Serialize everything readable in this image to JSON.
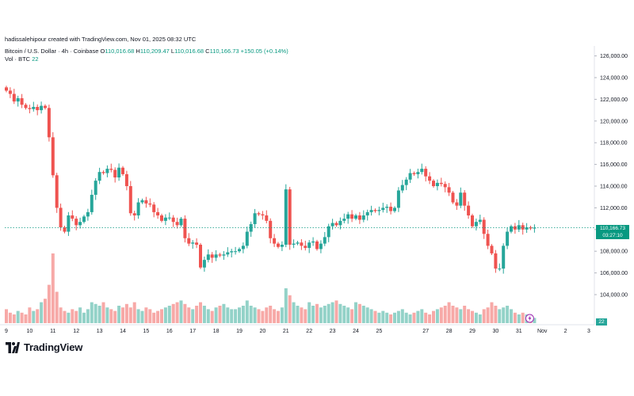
{
  "header": {
    "credit": "hadissalehipour created with TradingView.com, Nov 01, 2025 08:32 UTC",
    "symbol": "Bitcoin / U.S. Dollar · 4h · Coinbase",
    "o_label": "O",
    "o_value": "110,016.68",
    "h_label": "H",
    "h_value": "110,209.47",
    "l_label": "L",
    "l_value": "110,016.68",
    "c_label": "C",
    "c_value": "110,166.73",
    "change": "+150.05 (+0.14%)",
    "vol_label": "Vol · BTC",
    "vol_value": "22"
  },
  "price_label": {
    "value": "110,166.73",
    "countdown": "03:27:10"
  },
  "volume_label": "22",
  "brand": {
    "name": "TradingView"
  },
  "colors": {
    "up": "#26a69a",
    "down": "#ef5350",
    "up_vol": "#93d2c8",
    "down_vol": "#f7a9a7",
    "price_line": "#089981"
  },
  "chart_data": {
    "type": "candlestick",
    "title": "Bitcoin / U.S. Dollar · 4h · Coinbase",
    "y_axis": {
      "ticks": [
        104000,
        106000,
        108000,
        110000,
        112000,
        114000,
        116000,
        118000,
        120000,
        122000,
        124000,
        126000
      ],
      "tick_labels": [
        "104,000.00",
        "106,000.00",
        "108,000.00",
        "110,000.00",
        "112,000.00",
        "114,000.00",
        "116,000.00",
        "118,000.00",
        "120,000.00",
        "122,000.00",
        "124,000.00",
        "126,000.00"
      ],
      "range": [
        102000,
        127000
      ]
    },
    "x_axis": {
      "tick_labels": [
        "9",
        "10",
        "11",
        "12",
        "13",
        "14",
        "15",
        "16",
        "17",
        "18",
        "19",
        "20",
        "21",
        "22",
        "23",
        "24",
        "25",
        "",
        "27",
        "28",
        "29",
        "30",
        "31",
        "Nov",
        "2",
        "3"
      ],
      "tick_positions": [
        0,
        6,
        12,
        18,
        24,
        30,
        36,
        42,
        48,
        54,
        60,
        66,
        72,
        78,
        84,
        90,
        96,
        102,
        108,
        114,
        120,
        126,
        132,
        138,
        144,
        150
      ]
    },
    "current_price": 110166.73,
    "closes": [
      122800,
      122500,
      121800,
      122100,
      121500,
      121200,
      121100,
      121300,
      121000,
      121400,
      121200,
      118500,
      115000,
      112000,
      110200,
      109800,
      111300,
      111000,
      110400,
      110700,
      111200,
      111600,
      113200,
      114500,
      115300,
      115200,
      115600,
      115500,
      114800,
      115700,
      115100,
      114000,
      111500,
      111300,
      112500,
      112700,
      112400,
      112300,
      111600,
      111300,
      110800,
      111100,
      111100,
      110700,
      110400,
      111000,
      109200,
      108700,
      108800,
      108600,
      106500,
      107200,
      107700,
      107400,
      107700,
      107600,
      107700,
      107900,
      108000,
      108000,
      108200,
      108500,
      109800,
      110500,
      111500,
      111400,
      111300,
      110800,
      109200,
      108700,
      108400,
      108600,
      113700,
      108600,
      108700,
      108800,
      108500,
      108300,
      108800,
      108900,
      108200,
      108700,
      109300,
      110300,
      110600,
      110400,
      110800,
      111000,
      111400,
      111000,
      111300,
      110900,
      111300,
      111600,
      111800,
      111700,
      111800,
      112000,
      112100,
      111700,
      112000,
      113600,
      114100,
      114600,
      115200,
      115100,
      115300,
      115600,
      114900,
      114500,
      114000,
      114300,
      114200,
      113900,
      113400,
      112500,
      112200,
      113400,
      112200,
      111300,
      110300,
      110700,
      110900,
      109600,
      108500,
      107800,
      106400,
      106400,
      108500,
      109800,
      110300,
      110000,
      110400,
      110000,
      110200,
      110100,
      110166.73
    ],
    "volumes": [
      8,
      6,
      5,
      7,
      6,
      5,
      9,
      7,
      8,
      12,
      14,
      22,
      40,
      18,
      9,
      7,
      6,
      8,
      7,
      9,
      6,
      8,
      12,
      11,
      10,
      12,
      9,
      8,
      7,
      10,
      9,
      11,
      9,
      12,
      8,
      7,
      9,
      8,
      6,
      7,
      8,
      9,
      10,
      11,
      12,
      13,
      11,
      9,
      8,
      10,
      12,
      10,
      8,
      7,
      9,
      10,
      11,
      9,
      8,
      8,
      9,
      10,
      13,
      10,
      9,
      8,
      7,
      9,
      10,
      8,
      7,
      9,
      20,
      16,
      12,
      10,
      9,
      8,
      12,
      10,
      11,
      9,
      10,
      11,
      12,
      13,
      11,
      10,
      9,
      8,
      12,
      11,
      10,
      9,
      8,
      7,
      6,
      7,
      6,
      5,
      6,
      7,
      8,
      6,
      5,
      6,
      7,
      8,
      6,
      5,
      7,
      8,
      9,
      10,
      12,
      10,
      9,
      8,
      10,
      8,
      7,
      6,
      5,
      8,
      9,
      12,
      10,
      8,
      9,
      10,
      8,
      6,
      5,
      6,
      5,
      4,
      3
    ]
  }
}
